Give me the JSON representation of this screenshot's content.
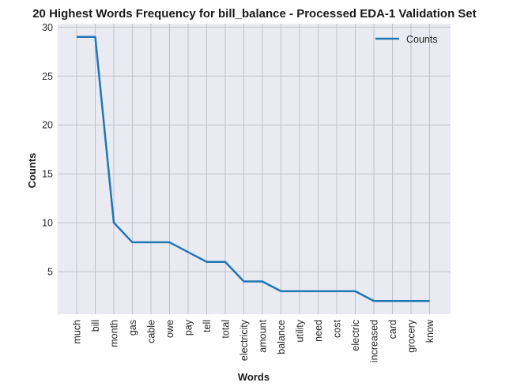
{
  "chart_data": {
    "type": "line",
    "title": "20 Highest Words Frequency for bill_balance - Processed EDA-1 Validation Set",
    "xlabel": "Words",
    "ylabel": "Counts",
    "categories": [
      "much",
      "bill",
      "month",
      "gas",
      "cable",
      "owe",
      "pay",
      "tell",
      "total",
      "electricity",
      "amount",
      "balance",
      "utility",
      "need",
      "cost",
      "electric",
      "increased",
      "card",
      "grocery",
      "know"
    ],
    "series": [
      {
        "name": "Counts",
        "values": [
          29,
          29,
          10,
          8,
          8,
          8,
          7,
          6,
          6,
          4,
          4,
          3,
          3,
          3,
          3,
          3,
          2,
          2,
          2,
          2
        ],
        "color": "#1f77b4"
      }
    ],
    "ylim": [
      0.65,
      30.35
    ],
    "yticks": [
      5,
      10,
      15,
      20,
      25,
      30
    ],
    "grid": true,
    "legend_position": "top-right",
    "background_color": "#eaeaf2",
    "grid_color": "#c0c0c4"
  }
}
